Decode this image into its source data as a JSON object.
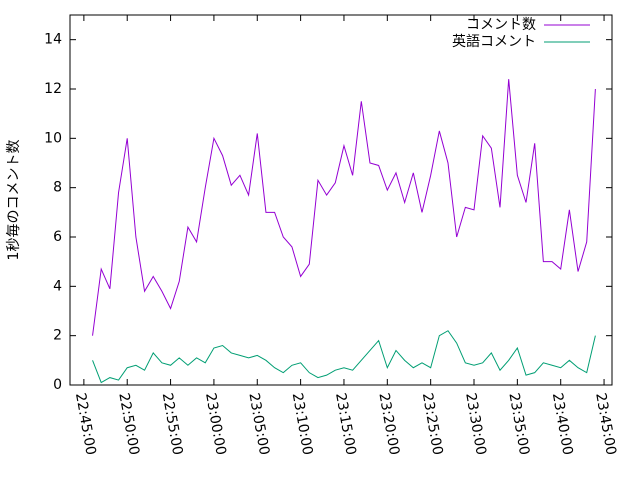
{
  "chart_data": {
    "type": "line",
    "ylabel": "1秒毎のコメント数",
    "x": [
      "22:46:00",
      "22:47:00",
      "22:48:00",
      "22:49:00",
      "22:50:00",
      "22:51:00",
      "22:52:00",
      "22:53:00",
      "22:54:00",
      "22:55:00",
      "22:56:00",
      "22:57:00",
      "22:58:00",
      "22:59:00",
      "23:00:00",
      "23:01:00",
      "23:02:00",
      "23:03:00",
      "23:04:00",
      "23:05:00",
      "23:06:00",
      "23:07:00",
      "23:08:00",
      "23:09:00",
      "23:10:00",
      "23:11:00",
      "23:12:00",
      "23:13:00",
      "23:14:00",
      "23:15:00",
      "23:16:00",
      "23:17:00",
      "23:18:00",
      "23:19:00",
      "23:20:00",
      "23:21:00",
      "23:22:00",
      "23:23:00",
      "23:24:00",
      "23:25:00",
      "23:26:00",
      "23:27:00",
      "23:28:00",
      "23:29:00",
      "23:30:00",
      "23:31:00",
      "23:32:00",
      "23:33:00",
      "23:34:00",
      "23:35:00",
      "23:36:00",
      "23:37:00",
      "23:38:00",
      "23:39:00",
      "23:40:00",
      "23:41:00",
      "23:42:00",
      "23:43:00",
      "23:44:00"
    ],
    "series": [
      {
        "name": "コメント数",
        "color": "#9400d3",
        "values": [
          2.0,
          4.7,
          3.9,
          7.8,
          10.0,
          6.0,
          3.8,
          4.4,
          3.8,
          3.1,
          4.2,
          6.4,
          5.8,
          8.0,
          10.0,
          9.3,
          8.1,
          8.5,
          7.7,
          10.2,
          7.0,
          7.0,
          6.0,
          5.6,
          4.4,
          4.9,
          8.3,
          7.7,
          8.2,
          9.7,
          8.5,
          11.5,
          9.0,
          8.9,
          7.9,
          8.6,
          7.4,
          8.6,
          7.0,
          8.5,
          10.3,
          9.0,
          6.0,
          7.2,
          7.1,
          10.1,
          9.6,
          7.2,
          12.4,
          8.5,
          7.4,
          9.8,
          5.0,
          5.0,
          4.7,
          7.1,
          4.6,
          5.8,
          12.0
        ]
      },
      {
        "name": "英語コメント",
        "color": "#009e73",
        "values": [
          1.0,
          0.1,
          0.3,
          0.2,
          0.7,
          0.8,
          0.6,
          1.3,
          0.9,
          0.8,
          1.1,
          0.8,
          1.1,
          0.9,
          1.5,
          1.6,
          1.3,
          1.2,
          1.1,
          1.2,
          1.0,
          0.7,
          0.5,
          0.8,
          0.9,
          0.5,
          0.3,
          0.4,
          0.6,
          0.7,
          0.6,
          1.0,
          1.4,
          1.8,
          0.7,
          1.4,
          1.0,
          0.7,
          0.9,
          0.7,
          2.0,
          2.2,
          1.7,
          0.9,
          0.8,
          0.9,
          1.3,
          0.6,
          1.0,
          1.5,
          0.4,
          0.5,
          0.9,
          0.8,
          0.7,
          1.0,
          0.7,
          0.5,
          2.0
        ]
      }
    ],
    "xlim": [
      "22:43:24",
      "23:45:55"
    ],
    "xticks": [
      "22:45:00",
      "22:50:00",
      "22:55:00",
      "23:00:00",
      "23:05:00",
      "23:10:00",
      "23:15:00",
      "23:20:00",
      "23:25:00",
      "23:30:00",
      "23:35:00",
      "23:40:00",
      "23:45:00"
    ],
    "ylim": [
      0,
      15
    ],
    "yticks": [
      0,
      2,
      4,
      6,
      8,
      10,
      12,
      14
    ],
    "legend": "top-right"
  }
}
